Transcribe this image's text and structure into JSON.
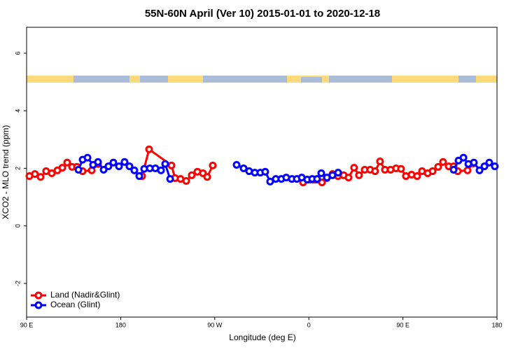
{
  "chart_data": {
    "type": "line",
    "title": "55N-60N April (Ver 10)   2015-01-01 to 2020-12-18",
    "xlabel": "Longitude (deg E)",
    "ylabel": "XCO2 - MLO trend (ppm)",
    "xlim": [
      90,
      540
    ],
    "ylim": [
      -3.17,
      6.9
    ],
    "xticks": [
      {
        "value": 90,
        "label": "90 E"
      },
      180,
      {
        "value": 270,
        "label": "90 W"
      },
      {
        "value": 360,
        "label": "0"
      },
      {
        "value": 450,
        "label": "90 E"
      },
      {
        "value": 540,
        "label": "180"
      }
    ],
    "yticks": [
      -2,
      0,
      2,
      4,
      6
    ],
    "legend": "bottom-left",
    "series": [
      {
        "name": "Land (Nadir&Glint)",
        "color": "#ff0000",
        "x": [
          92.7,
          98,
          103.4,
          108.7,
          114.1,
          119.5,
          124.2,
          128.8,
          133.5,
          138.2,
          143.6,
          152.3,
          158.3,
          null,
          200.5,
          207.2,
          228.6,
          232,
          237.3,
          242.7,
          248,
          253.4,
          258.7,
          262.8,
          268.1,
          null,
          354.5,
          372.6,
          377.2,
          382.6,
          387.9,
          393.3,
          398,
          403.3,
          408,
          413.4,
          418.7,
          423.4,
          428.1,
          432.8,
          438.2,
          443.5,
          448.2,
          452.9,
          458.3,
          463.6,
          468.3,
          473.7,
          478.4,
          483.7,
          488.4,
          493.8,
          498.5,
          502.5,
          511.8,
          517.2
        ],
        "values": [
          1.73,
          1.8,
          1.7,
          1.9,
          1.83,
          1.93,
          2.02,
          2.2,
          2.05,
          2.05,
          1.9,
          1.93,
          2.15,
          null,
          1.73,
          2.66,
          2.1,
          1.66,
          1.63,
          1.56,
          1.76,
          1.88,
          1.83,
          1.7,
          2.1,
          null,
          1.51,
          1.51,
          1.66,
          1.8,
          1.73,
          1.76,
          1.68,
          2.02,
          1.76,
          1.95,
          1.95,
          1.9,
          2.24,
          1.95,
          1.95,
          2.0,
          1.98,
          1.73,
          1.78,
          1.73,
          1.9,
          1.83,
          1.9,
          2.05,
          2.22,
          2.07,
          2.07,
          1.9,
          1.93,
          2.17
        ]
      },
      {
        "name": "Ocean (Glint)",
        "color": "#0000ff",
        "x": [
          139.6,
          143.6,
          148.3,
          153.6,
          158.3,
          163.7,
          168.3,
          173,
          178.4,
          183.7,
          188.4,
          193.1,
          197.8,
          202.5,
          207.9,
          213.2,
          218.6,
          222.6,
          227.3,
          null,
          290.9,
          297.6,
          302.9,
          308.3,
          313.6,
          318.3,
          323,
          328.4,
          333.7,
          338.4,
          343.8,
          348.5,
          353.2,
          358.5,
          363.2,
          367.9,
          371.9,
          377.3,
          382.6,
          388,
          null,
          498.5,
          503.2,
          507.9,
          512.6,
          517.9,
          523.3,
          528,
          532.6,
          537.9
        ],
        "values": [
          1.95,
          2.3,
          2.37,
          2.12,
          2.22,
          1.95,
          2.07,
          2.2,
          2.07,
          2.22,
          2.07,
          1.93,
          1.73,
          1.98,
          2.0,
          2.0,
          1.93,
          2.15,
          1.63,
          null,
          2.12,
          2.0,
          1.9,
          1.85,
          1.85,
          1.88,
          1.54,
          1.63,
          1.63,
          1.68,
          1.63,
          1.63,
          1.68,
          1.61,
          1.63,
          1.63,
          1.83,
          1.68,
          1.76,
          1.85,
          null,
          1.95,
          2.27,
          2.37,
          2.15,
          2.2,
          1.93,
          2.07,
          2.2,
          2.07
        ]
      }
    ]
  }
}
